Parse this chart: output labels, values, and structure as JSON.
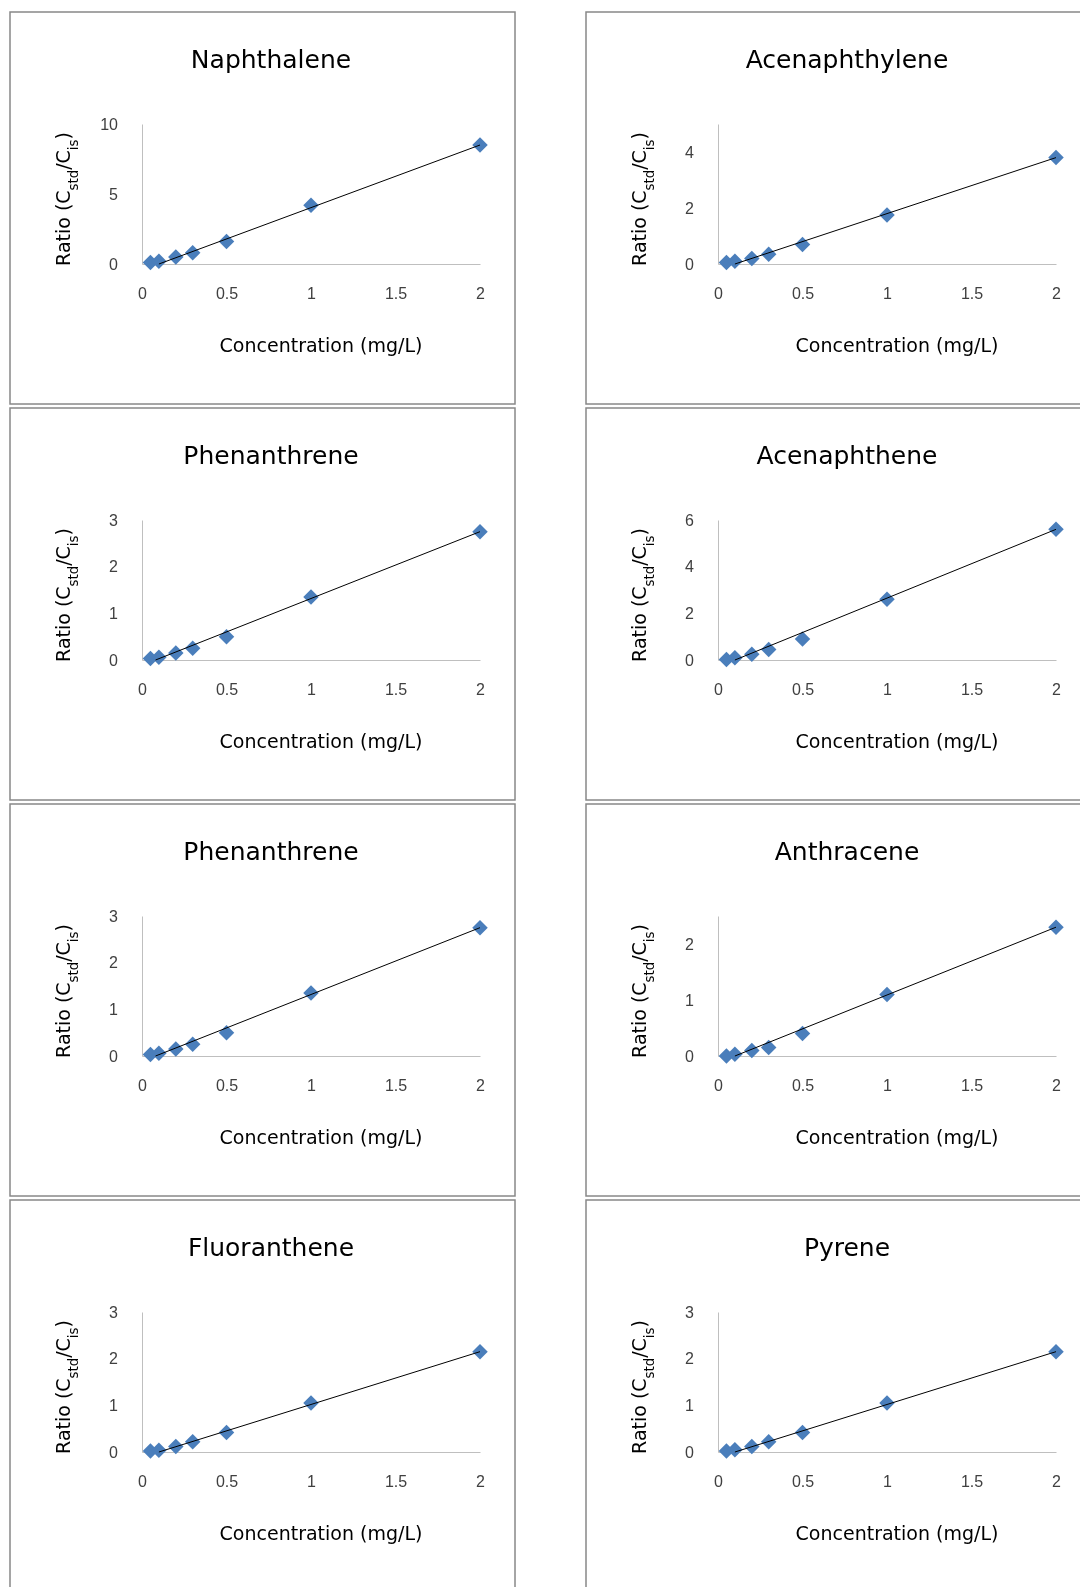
{
  "chart_data": [
    {
      "type": "scatter",
      "title": "Naphthalene",
      "xlabel": "Concentration (mg/L)",
      "ylabel": "Ratio (C$_{std}$/C$_{is}$)",
      "xlim": [
        0,
        2
      ],
      "xticks": [
        0,
        0.5,
        1,
        1.5,
        2
      ],
      "ylim": [
        0,
        10
      ],
      "yticks": [
        0,
        5,
        10
      ],
      "series": [
        {
          "type": "scatter",
          "marker": "diamond",
          "color": "#4a7ebb",
          "x": [
            0.05,
            0.1,
            0.2,
            0.3,
            0.5,
            1,
            2
          ],
          "values": [
            0.1,
            0.2,
            0.5,
            0.8,
            1.6,
            4.2,
            8.5
          ]
        },
        {
          "type": "line",
          "color": "#000000",
          "x": [
            0.1,
            2
          ],
          "values": [
            0,
            8.5
          ]
        }
      ]
    },
    {
      "type": "scatter",
      "title": "Acenaphthylene",
      "xlabel": "Concentration (mg/L)",
      "ylabel": "Ratio (C$_{std}$/C$_{is}$)",
      "xlim": [
        0,
        2
      ],
      "xticks": [
        0,
        0.5,
        1,
        1.5,
        2
      ],
      "ylim": [
        0,
        5
      ],
      "yticks": [
        0,
        2,
        4
      ],
      "series": [
        {
          "type": "scatter",
          "marker": "diamond",
          "color": "#4a7ebb",
          "x": [
            0.05,
            0.1,
            0.2,
            0.3,
            0.5,
            1,
            2
          ],
          "values": [
            0.05,
            0.1,
            0.2,
            0.35,
            0.7,
            1.75,
            3.8
          ]
        },
        {
          "type": "line",
          "color": "#000000",
          "x": [
            0.1,
            2
          ],
          "values": [
            0,
            3.8
          ]
        }
      ]
    },
    {
      "type": "scatter",
      "title": "Phenanthrene",
      "xlabel": "Concentration (mg/L)",
      "ylabel": "Ratio (C$_{std}$/C$_{is}$)",
      "xlim": [
        0,
        2
      ],
      "xticks": [
        0,
        0.5,
        1,
        1.5,
        2
      ],
      "ylim": [
        0,
        3
      ],
      "yticks": [
        0,
        1,
        2,
        3
      ],
      "series": [
        {
          "type": "scatter",
          "marker": "diamond",
          "color": "#4a7ebb",
          "x": [
            0.05,
            0.1,
            0.2,
            0.3,
            0.5,
            1,
            2
          ],
          "values": [
            0.03,
            0.06,
            0.15,
            0.25,
            0.5,
            1.35,
            2.75
          ]
        },
        {
          "type": "line",
          "color": "#000000",
          "x": [
            0.08,
            2
          ],
          "values": [
            0,
            2.75
          ]
        }
      ]
    },
    {
      "type": "scatter",
      "title": "Acenaphthene",
      "xlabel": "Concentration (mg/L)",
      "ylabel": "Ratio (C$_{std}$/C$_{is}$)",
      "xlim": [
        0,
        2
      ],
      "xticks": [
        0,
        0.5,
        1,
        1.5,
        2
      ],
      "ylim": [
        0,
        6
      ],
      "yticks": [
        0,
        2,
        4,
        6
      ],
      "series": [
        {
          "type": "scatter",
          "marker": "diamond",
          "color": "#4a7ebb",
          "x": [
            0.05,
            0.1,
            0.2,
            0.3,
            0.5,
            1,
            2
          ],
          "values": [
            0.02,
            0.1,
            0.25,
            0.45,
            0.9,
            2.6,
            5.6
          ]
        },
        {
          "type": "line",
          "color": "#000000",
          "x": [
            0.1,
            2
          ],
          "values": [
            0,
            5.6
          ]
        }
      ]
    },
    {
      "type": "scatter",
      "title": "Phenanthrene",
      "xlabel": "Concentration (mg/L)",
      "ylabel": "Ratio (C$_{std}$/C$_{is}$)",
      "xlim": [
        0,
        2
      ],
      "xticks": [
        0,
        0.5,
        1,
        1.5,
        2
      ],
      "ylim": [
        0,
        3
      ],
      "yticks": [
        0,
        1,
        2,
        3
      ],
      "series": [
        {
          "type": "scatter",
          "marker": "diamond",
          "color": "#4a7ebb",
          "x": [
            0.05,
            0.1,
            0.2,
            0.3,
            0.5,
            1,
            2
          ],
          "values": [
            0.03,
            0.06,
            0.15,
            0.25,
            0.5,
            1.35,
            2.75
          ]
        },
        {
          "type": "line",
          "color": "#000000",
          "x": [
            0.08,
            2
          ],
          "values": [
            0,
            2.75
          ]
        }
      ]
    },
    {
      "type": "scatter",
      "title": "Anthracene",
      "xlabel": "Concentration (mg/L)",
      "ylabel": "Ratio (C$_{std}$/C$_{is}$)",
      "xlim": [
        0,
        2
      ],
      "xticks": [
        0,
        0.5,
        1,
        1.5,
        2
      ],
      "ylim": [
        0,
        2.5
      ],
      "yticks": [
        0,
        1,
        2
      ],
      "series": [
        {
          "type": "scatter",
          "marker": "diamond",
          "color": "#4a7ebb",
          "x": [
            0.05,
            0.1,
            0.2,
            0.3,
            0.5,
            1,
            2
          ],
          "values": [
            0,
            0.03,
            0.1,
            0.15,
            0.4,
            1.1,
            2.3
          ]
        },
        {
          "type": "line",
          "color": "#000000",
          "x": [
            0.1,
            2
          ],
          "values": [
            0,
            2.3
          ]
        }
      ]
    },
    {
      "type": "scatter",
      "title": "Fluoranthene",
      "xlabel": "Concentration (mg/L)",
      "ylabel": "Ratio (C$_{std}$/C$_{is}$)",
      "xlim": [
        0,
        2
      ],
      "xticks": [
        0,
        0.5,
        1,
        1.5,
        2
      ],
      "ylim": [
        0,
        3
      ],
      "yticks": [
        0,
        1,
        2,
        3
      ],
      "series": [
        {
          "type": "scatter",
          "marker": "diamond",
          "color": "#4a7ebb",
          "x": [
            0.05,
            0.1,
            0.2,
            0.3,
            0.5,
            1,
            2
          ],
          "values": [
            0.02,
            0.04,
            0.12,
            0.22,
            0.42,
            1.05,
            2.15
          ]
        },
        {
          "type": "line",
          "color": "#000000",
          "x": [
            0.1,
            2
          ],
          "values": [
            0,
            2.15
          ]
        }
      ]
    },
    {
      "type": "scatter",
      "title": "Pyrene",
      "xlabel": "Concentration (mg/L)",
      "ylabel": "Ratio (C$_{std}$/C$_{is}$)",
      "xlim": [
        0,
        2
      ],
      "xticks": [
        0,
        0.5,
        1,
        1.5,
        2
      ],
      "ylim": [
        0,
        3
      ],
      "yticks": [
        0,
        1,
        2,
        3
      ],
      "series": [
        {
          "type": "scatter",
          "marker": "diamond",
          "color": "#4a7ebb",
          "x": [
            0.05,
            0.1,
            0.2,
            0.3,
            0.5,
            1,
            2
          ],
          "values": [
            0.02,
            0.05,
            0.12,
            0.22,
            0.42,
            1.05,
            2.15
          ]
        },
        {
          "type": "line",
          "color": "#000000",
          "x": [
            0.1,
            2
          ],
          "values": [
            0,
            2.15
          ]
        }
      ]
    }
  ]
}
